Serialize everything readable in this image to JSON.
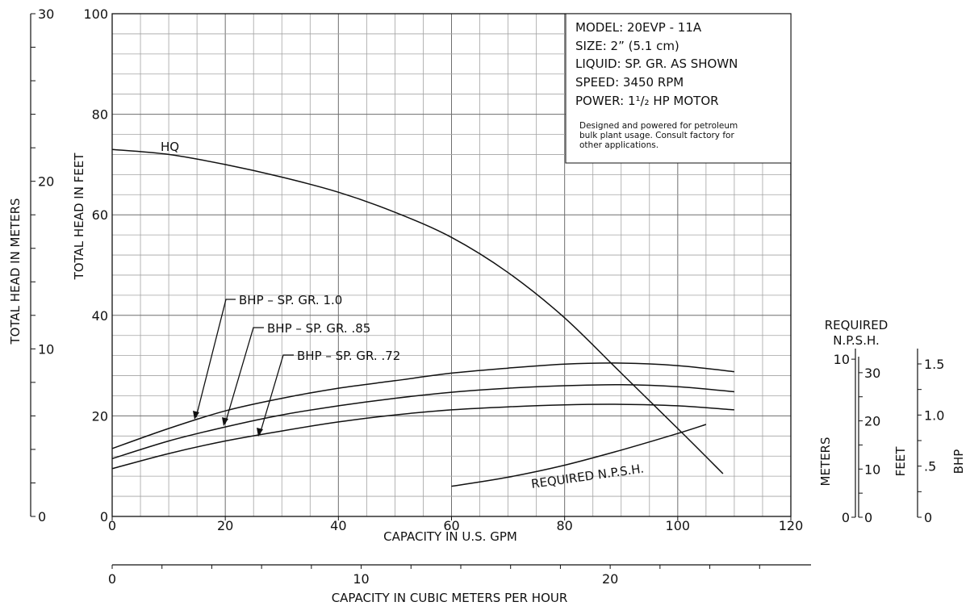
{
  "chart_data": {
    "type": "line",
    "title": "",
    "xlabel": "CAPACITY IN U.S. GPM",
    "ylabel": "TOTAL HEAD IN FEET",
    "xlim": [
      0,
      120
    ],
    "ylim": [
      0,
      100
    ],
    "grid": true,
    "x_ticks": [
      "0",
      "20",
      "40",
      "60",
      "80",
      "100",
      "120"
    ],
    "y_ticks": [
      "0",
      "20",
      "40",
      "60",
      "80",
      "100"
    ],
    "secondary_axes": {
      "meters": {
        "label": "TOTAL HEAD IN METERS",
        "ticks": [
          "0",
          "10",
          "20",
          "30"
        ]
      },
      "m3h": {
        "label": "CAPACITY IN CUBIC METERS PER HOUR",
        "ticks": [
          "0",
          "10",
          "20"
        ]
      },
      "npsh_title": [
        "REQUIRED",
        "N.P.S.H."
      ],
      "npsh_meters": {
        "label": "METERS",
        "ticks": [
          "0",
          "10"
        ]
      },
      "npsh_feet": {
        "label": "FEET",
        "ticks": [
          "0",
          "10",
          "20",
          "30"
        ]
      },
      "bhp": {
        "label": "BHP",
        "ticks": [
          "0",
          ".5",
          "1.0",
          "1.5"
        ]
      }
    },
    "series": [
      {
        "name": "HQ",
        "x": [
          0,
          10,
          20,
          30,
          40,
          50,
          60,
          70,
          80,
          90,
          100,
          108
        ],
        "y": [
          73,
          72,
          70,
          67.5,
          64.5,
          60.5,
          55.5,
          48.5,
          39.5,
          28.5,
          17.5,
          8.5
        ]
      },
      {
        "name": "BHP – SP. GR. 1.0",
        "x": [
          0,
          10,
          20,
          30,
          40,
          50,
          60,
          70,
          80,
          90,
          100,
          110
        ],
        "y": [
          13.5,
          17.5,
          21,
          23.5,
          25.5,
          27,
          28.5,
          29.5,
          30.3,
          30.5,
          30,
          28.8
        ]
      },
      {
        "name": "BHP – SP. GR. .85",
        "x": [
          0,
          10,
          20,
          30,
          40,
          50,
          60,
          70,
          80,
          90,
          100,
          110
        ],
        "y": [
          11.5,
          15,
          17.8,
          20.2,
          22,
          23.5,
          24.7,
          25.5,
          26,
          26.2,
          25.8,
          24.8
        ]
      },
      {
        "name": "BHP – SP. GR. .72",
        "x": [
          0,
          10,
          20,
          30,
          40,
          50,
          60,
          70,
          80,
          90,
          100,
          110
        ],
        "y": [
          9.5,
          12.5,
          15,
          17,
          18.8,
          20.2,
          21.2,
          21.8,
          22.2,
          22.3,
          22,
          21.2
        ]
      },
      {
        "name": "REQUIRED N.P.S.H.",
        "x": [
          60,
          70,
          80,
          90,
          100,
          105
        ],
        "y": [
          6,
          7.8,
          10.2,
          13.2,
          16.5,
          18.3
        ]
      }
    ],
    "labels": {
      "hq": "HQ",
      "bhp_10": "BHP – SP. GR. 1.0",
      "bhp_85": "BHP – SP. GR. .85",
      "bhp_72": "BHP – SP. GR. .72",
      "npsh": "REQUIRED N.P.S.H."
    },
    "info_box": {
      "lines": [
        "MODEL: 20EVP - 11A",
        "SIZE: 2” (5.1 cm)",
        "LIQUID: SP. GR. AS SHOWN",
        "SPEED: 3450 RPM",
        "POWER: 1¹/₂ HP MOTOR"
      ],
      "note_lines": [
        "Designed and powered for petroleum",
        "bulk plant usage. Consult factory for",
        "other applications."
      ]
    }
  }
}
